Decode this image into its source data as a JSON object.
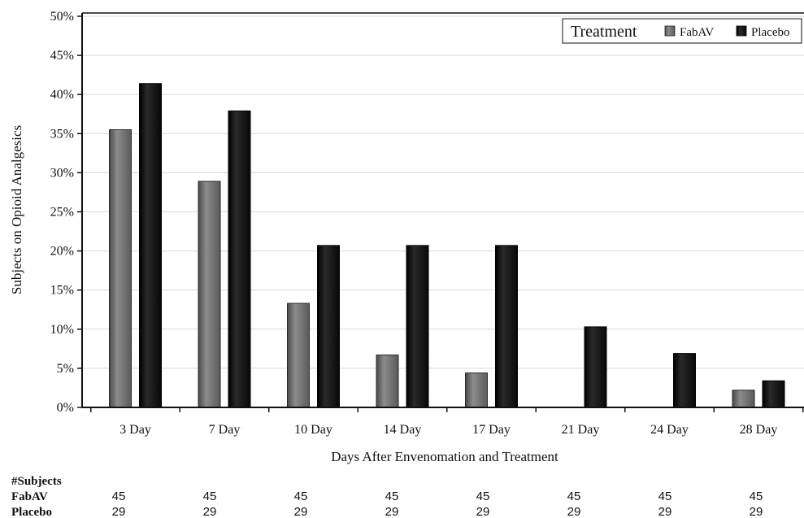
{
  "chart_data": {
    "type": "bar",
    "categories": [
      "3 Day",
      "7 Day",
      "10 Day",
      "14 Day",
      "17 Day",
      "21 Day",
      "24 Day",
      "28 Day"
    ],
    "series": [
      {
        "name": "FabAV",
        "values": [
          35.5,
          28.9,
          13.3,
          6.7,
          4.4,
          0,
          0,
          2.2
        ],
        "color": "#6e6e6e"
      },
      {
        "name": "Placebo",
        "values": [
          41.4,
          37.9,
          20.7,
          20.7,
          20.7,
          10.3,
          6.9,
          3.4
        ],
        "color": "#111111"
      }
    ],
    "xlabel": "Days After Envenomation and Treatment",
    "ylabel": "Subjects on Opioid Analgesics",
    "ylim": [
      0,
      50
    ],
    "yticks": [
      "0%",
      "5%",
      "10%",
      "15%",
      "20%",
      "25%",
      "30%",
      "35%",
      "40%",
      "45%",
      "50%"
    ],
    "grid": true,
    "legend": {
      "title": "Treatment",
      "placement": "top-right"
    }
  },
  "subjects_table": {
    "header": "#Subjects",
    "rows": [
      {
        "label": "FabAV",
        "values": [
          "45",
          "45",
          "45",
          "45",
          "45",
          "45",
          "45",
          "45"
        ]
      },
      {
        "label": "Placebo",
        "values": [
          "29",
          "29",
          "29",
          "29",
          "29",
          "29",
          "29",
          "29"
        ]
      }
    ]
  }
}
